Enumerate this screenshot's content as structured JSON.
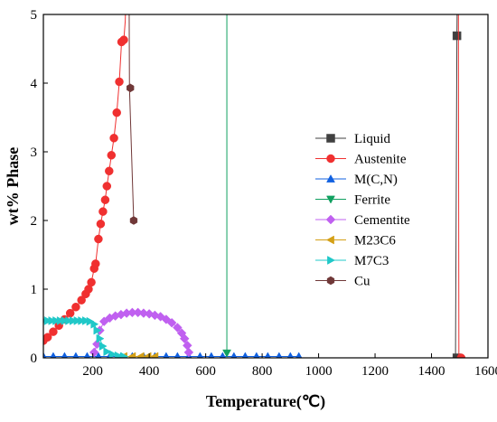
{
  "chart_data": {
    "type": "line",
    "title": "",
    "xlabel": "Temperature(℃)",
    "ylabel": "wt% Phase",
    "xlim": [
      25,
      1600
    ],
    "ylim": [
      0,
      5
    ],
    "xticks": [
      200,
      400,
      600,
      800,
      1000,
      1200,
      1400,
      1600
    ],
    "yticks": [
      0,
      1,
      2,
      3,
      4,
      5
    ],
    "legend_position": "right",
    "series": [
      {
        "name": "Liquid",
        "color": "#404040",
        "marker": "square",
        "points": [
          [
            1485,
            0
          ],
          [
            1490,
            4.69
          ],
          [
            1493,
            6
          ]
        ],
        "marker_points": [
          [
            1490,
            4.69
          ],
          [
            1490,
            0
          ]
        ]
      },
      {
        "name": "Austenite",
        "color": "#f03030",
        "marker": "circle",
        "points": [
          [
            25,
            0.25
          ],
          [
            40,
            0.3
          ],
          [
            60,
            0.38
          ],
          [
            80,
            0.47
          ],
          [
            100,
            0.56
          ],
          [
            120,
            0.65
          ],
          [
            140,
            0.74
          ],
          [
            160,
            0.84
          ],
          [
            180,
            0.95
          ],
          [
            195,
            1.1
          ],
          [
            205,
            1.3
          ],
          [
            210,
            1.37
          ],
          [
            220,
            1.73
          ],
          [
            228,
            1.95
          ],
          [
            236,
            2.13
          ],
          [
            244,
            2.3
          ],
          [
            250,
            2.5
          ],
          [
            258,
            2.72
          ],
          [
            266,
            2.95
          ],
          [
            275,
            3.2
          ],
          [
            285,
            3.57
          ],
          [
            294,
            4.02
          ],
          [
            302,
            4.6
          ],
          [
            310,
            4.63
          ],
          [
            315,
            4.9
          ],
          [
            320,
            5.6
          ],
          [
            1495,
            6
          ],
          [
            1497,
            0
          ],
          [
            1505,
            0
          ]
        ],
        "marker_points": [
          [
            25,
            0.25
          ],
          [
            40,
            0.3
          ],
          [
            60,
            0.38
          ],
          [
            80,
            0.47
          ],
          [
            100,
            0.56
          ],
          [
            120,
            0.65
          ],
          [
            140,
            0.74
          ],
          [
            160,
            0.84
          ],
          [
            175,
            0.93
          ],
          [
            185,
            1.0
          ],
          [
            195,
            1.1
          ],
          [
            205,
            1.3
          ],
          [
            210,
            1.37
          ],
          [
            220,
            1.73
          ],
          [
            228,
            1.95
          ],
          [
            236,
            2.13
          ],
          [
            244,
            2.3
          ],
          [
            250,
            2.5
          ],
          [
            258,
            2.72
          ],
          [
            266,
            2.95
          ],
          [
            275,
            3.2
          ],
          [
            285,
            3.57
          ],
          [
            294,
            4.02
          ],
          [
            302,
            4.6
          ],
          [
            310,
            4.63
          ],
          [
            1505,
            0
          ]
        ]
      },
      {
        "name": "M(C,N)",
        "color": "#1060e0",
        "marker": "triangle-up",
        "points": [
          [
            25,
            0.02
          ],
          [
            930,
            0.02
          ]
        ],
        "marker_points": [
          [
            25,
            0.02
          ],
          [
            60,
            0.02
          ],
          [
            100,
            0.02
          ],
          [
            140,
            0.02
          ],
          [
            180,
            0.02
          ],
          [
            220,
            0.02
          ],
          [
            260,
            0.02
          ],
          [
            300,
            0.02
          ],
          [
            340,
            0.02
          ],
          [
            380,
            0.02
          ],
          [
            420,
            0.02
          ],
          [
            460,
            0.02
          ],
          [
            500,
            0.02
          ],
          [
            540,
            0.02
          ],
          [
            580,
            0.02
          ],
          [
            620,
            0.02
          ],
          [
            660,
            0.02
          ],
          [
            700,
            0.02
          ],
          [
            740,
            0.02
          ],
          [
            780,
            0.02
          ],
          [
            820,
            0.02
          ],
          [
            860,
            0.02
          ],
          [
            900,
            0.02
          ],
          [
            930,
            0.02
          ]
        ]
      },
      {
        "name": "Ferrite",
        "color": "#10a060",
        "marker": "triangle-down",
        "points": [
          [
            675,
            6
          ],
          [
            675,
            0.07
          ]
        ],
        "marker_points": [
          [
            675,
            0.07
          ]
        ]
      },
      {
        "name": "Cementite",
        "color": "#c060f0",
        "marker": "diamond",
        "points": [
          [
            205,
            0.08
          ],
          [
            215,
            0.2
          ],
          [
            225,
            0.4
          ],
          [
            240,
            0.53
          ],
          [
            260,
            0.58
          ],
          [
            280,
            0.61
          ],
          [
            300,
            0.63
          ],
          [
            320,
            0.65
          ],
          [
            340,
            0.66
          ],
          [
            360,
            0.66
          ],
          [
            380,
            0.65
          ],
          [
            400,
            0.64
          ],
          [
            420,
            0.62
          ],
          [
            440,
            0.6
          ],
          [
            460,
            0.56
          ],
          [
            480,
            0.51
          ],
          [
            500,
            0.44
          ],
          [
            515,
            0.36
          ],
          [
            525,
            0.28
          ],
          [
            535,
            0.18
          ],
          [
            540,
            0.08
          ]
        ],
        "marker_points": [
          [
            205,
            0.08
          ],
          [
            215,
            0.2
          ],
          [
            225,
            0.4
          ],
          [
            240,
            0.53
          ],
          [
            260,
            0.58
          ],
          [
            280,
            0.61
          ],
          [
            300,
            0.63
          ],
          [
            320,
            0.65
          ],
          [
            340,
            0.66
          ],
          [
            360,
            0.66
          ],
          [
            380,
            0.65
          ],
          [
            400,
            0.64
          ],
          [
            420,
            0.62
          ],
          [
            440,
            0.6
          ],
          [
            460,
            0.56
          ],
          [
            480,
            0.51
          ],
          [
            500,
            0.44
          ],
          [
            515,
            0.36
          ],
          [
            525,
            0.28
          ],
          [
            535,
            0.18
          ],
          [
            540,
            0.08
          ]
        ]
      },
      {
        "name": "M23C6",
        "color": "#d4a017",
        "marker": "triangle-left",
        "points": [
          [
            310,
            0.02
          ],
          [
            420,
            0.02
          ]
        ],
        "marker_points": [
          [
            310,
            0.02
          ],
          [
            340,
            0.02
          ],
          [
            370,
            0.02
          ],
          [
            395,
            0.02
          ],
          [
            420,
            0.02
          ]
        ]
      },
      {
        "name": "M7C3",
        "color": "#20c8c8",
        "marker": "triangle-right",
        "points": [
          [
            25,
            0.54
          ],
          [
            60,
            0.54
          ],
          [
            100,
            0.54
          ],
          [
            140,
            0.54
          ],
          [
            170,
            0.54
          ],
          [
            190,
            0.53
          ],
          [
            205,
            0.49
          ],
          [
            215,
            0.4
          ],
          [
            225,
            0.28
          ],
          [
            235,
            0.17
          ],
          [
            250,
            0.09
          ],
          [
            270,
            0.05
          ],
          [
            290,
            0.03
          ],
          [
            310,
            0.02
          ]
        ],
        "marker_points": [
          [
            25,
            0.54
          ],
          [
            40,
            0.54
          ],
          [
            55,
            0.54
          ],
          [
            70,
            0.54
          ],
          [
            85,
            0.54
          ],
          [
            100,
            0.54
          ],
          [
            115,
            0.54
          ],
          [
            130,
            0.54
          ],
          [
            145,
            0.54
          ],
          [
            160,
            0.54
          ],
          [
            175,
            0.54
          ],
          [
            190,
            0.53
          ],
          [
            205,
            0.49
          ],
          [
            215,
            0.4
          ],
          [
            225,
            0.28
          ],
          [
            235,
            0.17
          ],
          [
            250,
            0.09
          ],
          [
            270,
            0.05
          ],
          [
            290,
            0.03
          ],
          [
            310,
            0.02
          ]
        ]
      },
      {
        "name": "Cu",
        "color": "#703838",
        "marker": "hexagon",
        "points": [
          [
            328,
            6
          ],
          [
            330,
            3.93
          ],
          [
            345,
            2.0
          ]
        ],
        "marker_points": [
          [
            333,
            3.93
          ],
          [
            345,
            2.0
          ]
        ]
      }
    ]
  }
}
